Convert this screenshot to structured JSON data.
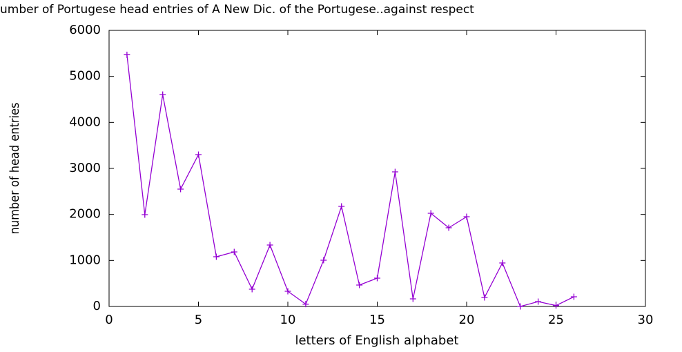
{
  "chart_data": {
    "type": "line",
    "title": "umber of Portugese head entries of A New Dic. of the Portugese..against respect",
    "xlabel": "letters of English alphabet",
    "ylabel": "number of head entries",
    "x": [
      1,
      2,
      3,
      4,
      5,
      6,
      7,
      8,
      9,
      10,
      11,
      12,
      13,
      14,
      15,
      16,
      17,
      18,
      19,
      20,
      21,
      22,
      23,
      24,
      25,
      26
    ],
    "values": [
      5470,
      1995,
      4605,
      2550,
      3300,
      1080,
      1185,
      375,
      1335,
      330,
      50,
      1005,
      2175,
      465,
      615,
      2925,
      165,
      2025,
      1710,
      1950,
      195,
      945,
      0,
      105,
      20,
      210
    ],
    "color": "#9400d3",
    "marker": "+",
    "xlim": [
      0,
      30
    ],
    "xticks": [
      0,
      5,
      10,
      15,
      20,
      25,
      30
    ],
    "ylim": [
      0,
      6000
    ],
    "yticks": [
      0,
      1000,
      2000,
      3000,
      4000,
      5000,
      6000
    ],
    "grid": false
  }
}
